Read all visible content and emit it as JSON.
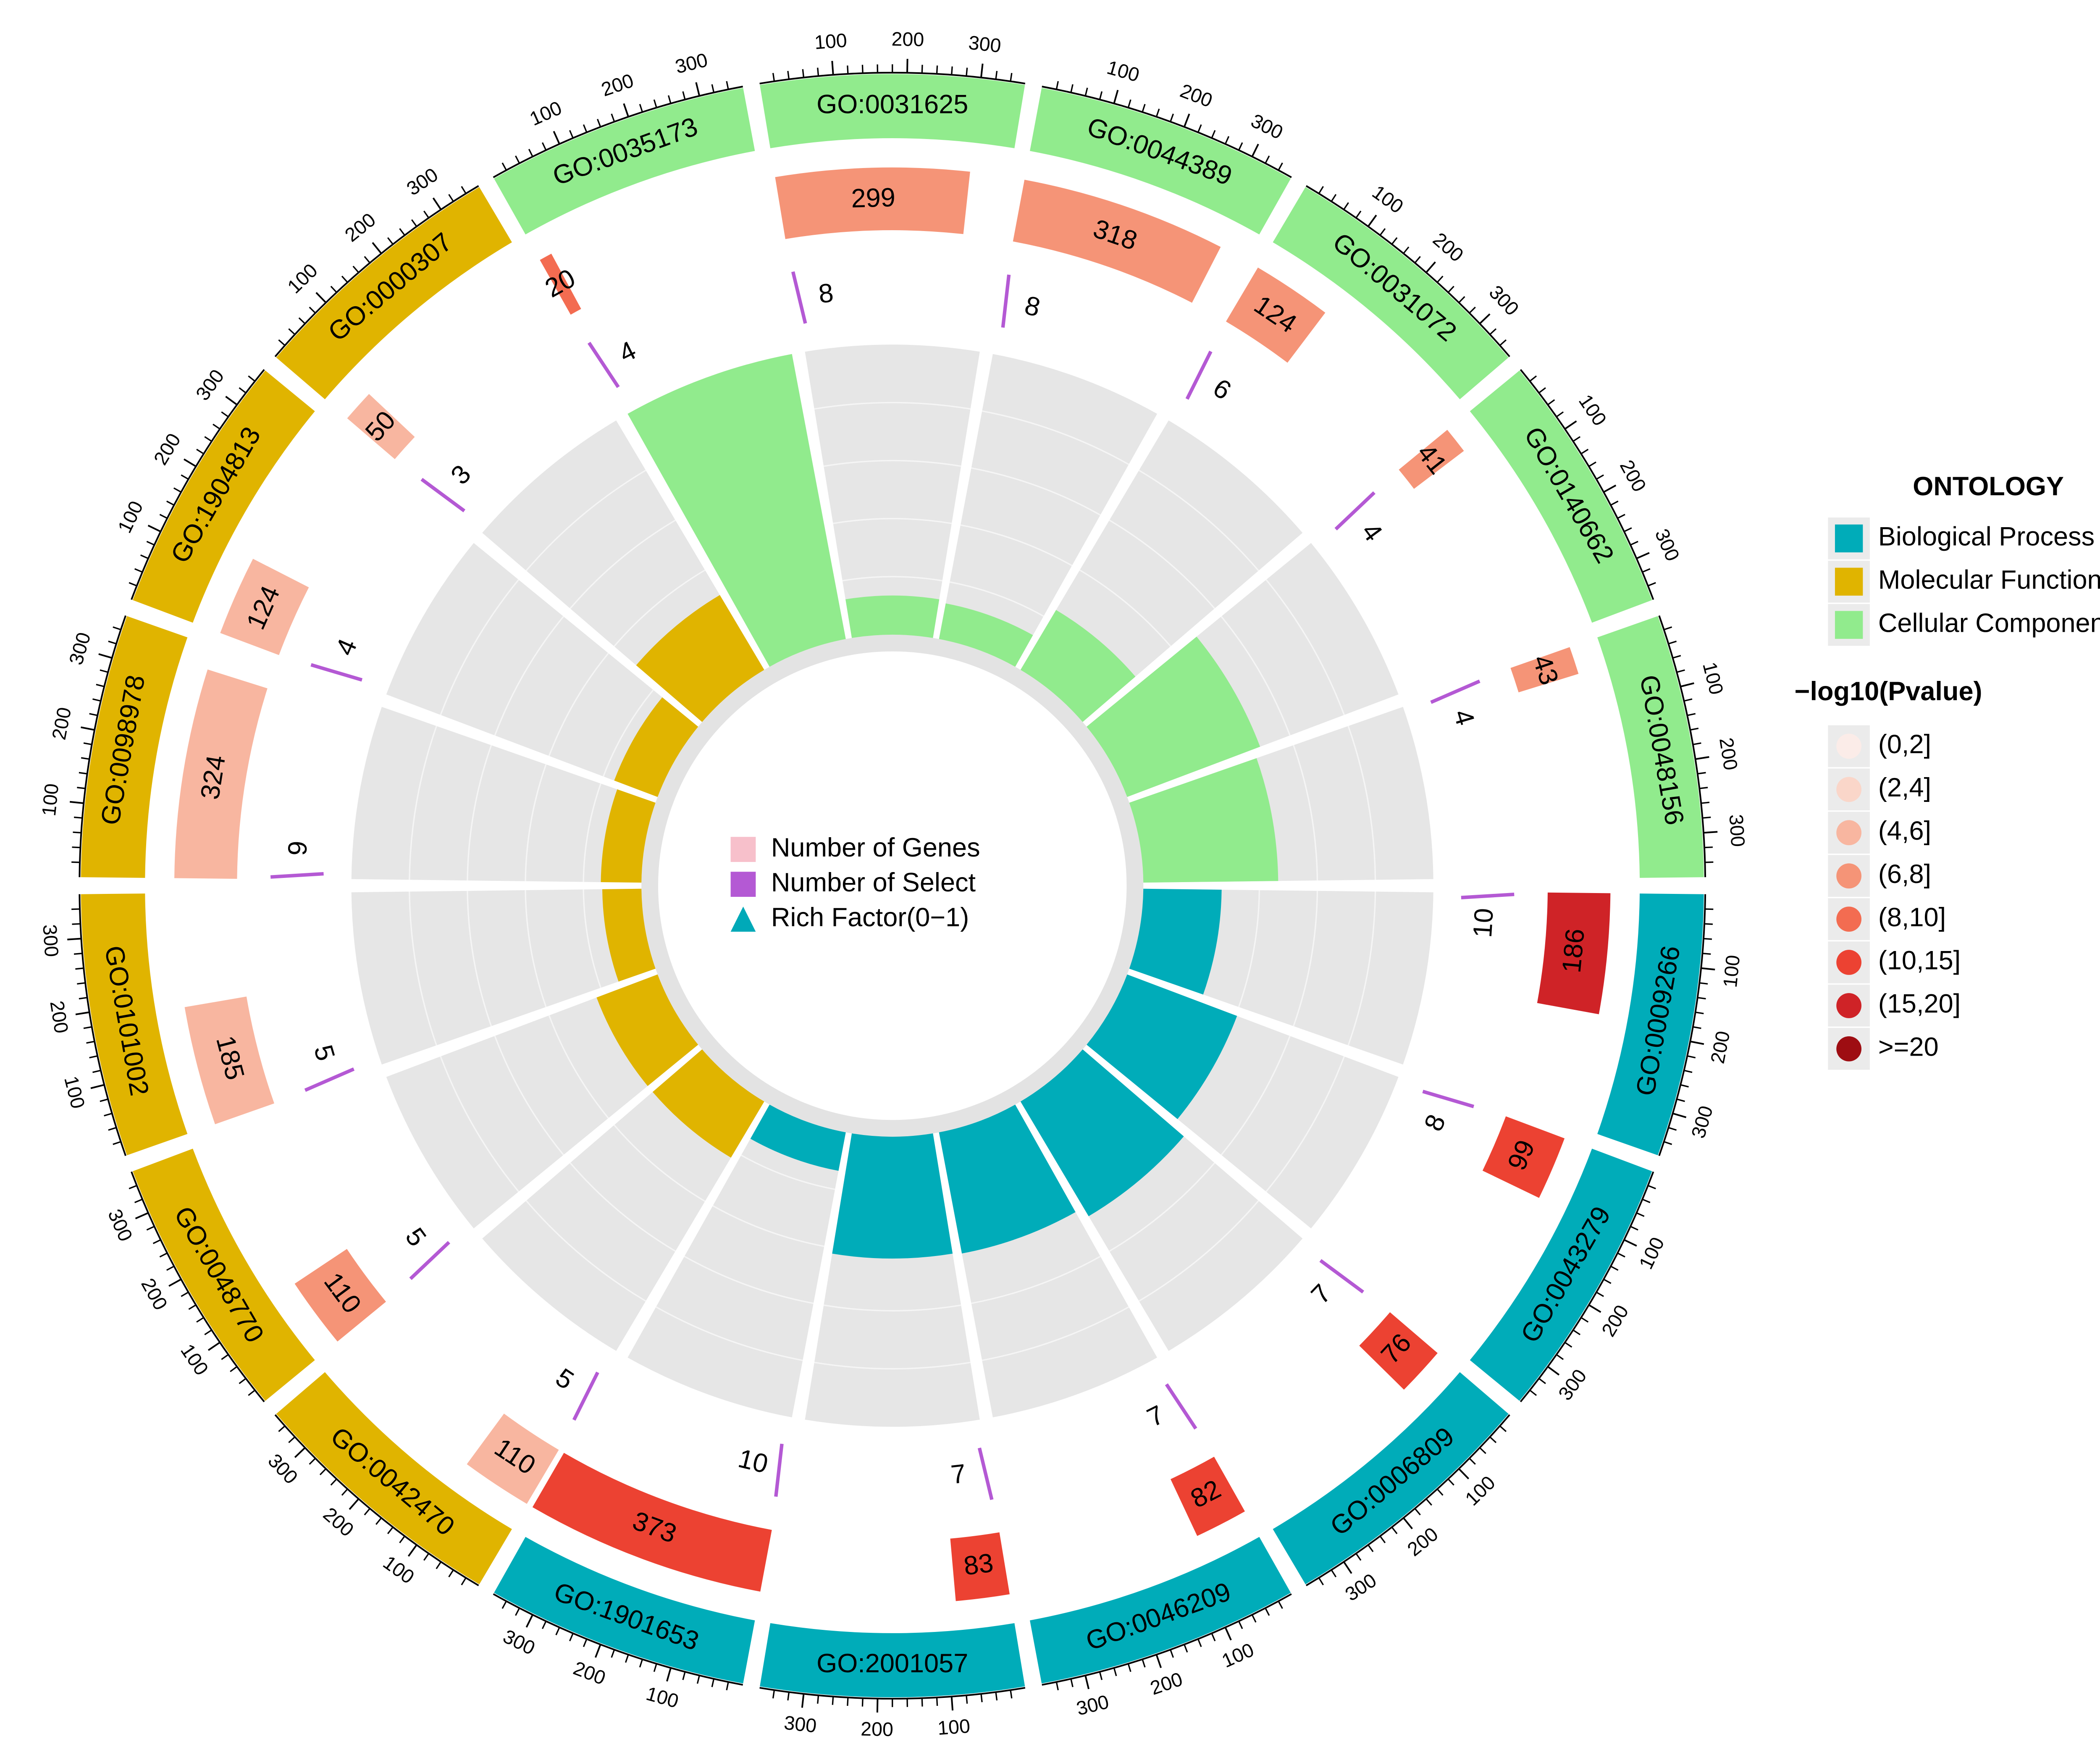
{
  "chart_data": {
    "type": "circos",
    "categories": [
      "GO:0009266",
      "GO:0043279",
      "GO:0006809",
      "GO:0046209",
      "GO:2001057",
      "GO:1901653",
      "GO:0042470",
      "GO:0048770",
      "GO:0101002",
      "GO:0098978",
      "GO:1904813",
      "GO:0000307",
      "GO:0035173",
      "GO:0031625",
      "GO:0044389",
      "GO:0031072",
      "GO:0140662",
      "GO:0048156"
    ],
    "ontology": [
      "Biological Process",
      "Biological Process",
      "Biological Process",
      "Biological Process",
      "Biological Process",
      "Biological Process",
      "Molecular Function",
      "Molecular Function",
      "Molecular Function",
      "Molecular Function",
      "Molecular Function",
      "Molecular Function",
      "Cellular Component",
      "Cellular Component",
      "Cellular Component",
      "Cellular Component",
      "Cellular Component",
      "Cellular Component"
    ],
    "pvalue_class": [
      "(15,20]",
      "(10,15]",
      "(10,15]",
      "(10,15]",
      "(10,15]",
      "(10,15]",
      "(4,6]",
      "(6,8]",
      "(4,6]",
      "(4,6]",
      "(4,6]",
      "(4,6]",
      "(8,10]",
      "(6,8]",
      "(6,8]",
      "(6,8]",
      "(6,8]",
      "(6,8]"
    ],
    "series": [
      {
        "name": "Number of Genes",
        "color": "#f7c0cb",
        "values": [
          186,
          99,
          76,
          82,
          83,
          373,
          110,
          110,
          185,
          324,
          124,
          50,
          20,
          299,
          318,
          124,
          41,
          43
        ]
      },
      {
        "name": "Number of Select",
        "color": "#b459d4",
        "values": [
          10,
          8,
          7,
          7,
          7,
          10,
          5,
          5,
          5,
          9,
          4,
          3,
          4,
          8,
          8,
          6,
          4,
          4
        ]
      },
      {
        "name": "Rich Factor(0−1)",
        "color": "#00a9b8",
        "values": [
          0.054,
          0.081,
          0.092,
          0.085,
          0.084,
          0.027,
          0.045,
          0.045,
          0.027,
          0.028,
          0.032,
          0.06,
          0.2,
          0.027,
          0.025,
          0.048,
          0.098,
          0.093
        ]
      }
    ],
    "xlim": [
      0,
      360
    ],
    "xticks": [
      100,
      200,
      300
    ],
    "minor_xticks": [
      20,
      40,
      60,
      80,
      120,
      140,
      160,
      180,
      220,
      240,
      260,
      280,
      320,
      340
    ],
    "rlim": [
      0,
      0.2
    ],
    "rticks": [
      0.04,
      0.08,
      0.12,
      0.16
    ],
    "legends": [
      {
        "title": "ONTOLOGY",
        "items": [
          {
            "label": "Biological Process",
            "color": "#00acb9"
          },
          {
            "label": "Molecular Function",
            "color": "#e0b400"
          },
          {
            "label": "Cellular Component",
            "color": "#91eb8d"
          }
        ]
      },
      {
        "title": "−log10(Pvalue)",
        "items": [
          {
            "label": "(0,2]",
            "color": "#fbece8"
          },
          {
            "label": "(2,4]",
            "color": "#fad6c9"
          },
          {
            "label": "(4,6]",
            "color": "#f8b6a0"
          },
          {
            "label": "(6,8]",
            "color": "#f59477"
          },
          {
            "label": "(8,10]",
            "color": "#f36c51"
          },
          {
            "label": "(10,15]",
            "color": "#ec4232"
          },
          {
            "label": "(15,20]",
            "color": "#cf2327"
          },
          {
            "label": ">=20",
            "color": "#9e0d12"
          }
        ]
      }
    ]
  }
}
